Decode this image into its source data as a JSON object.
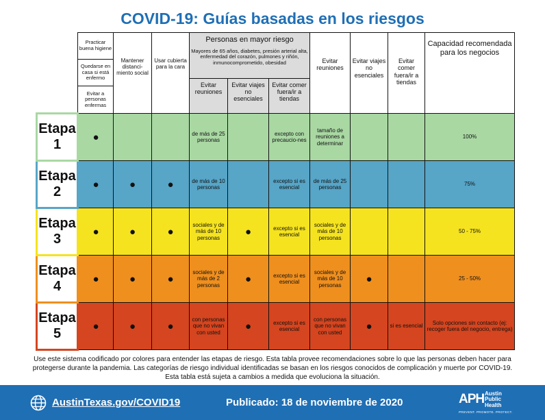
{
  "title": "COVID-19: Guías basadas en los riesgos",
  "header": {
    "col_hygiene": "Practicar buena higiene",
    "col_stay_home": "Quedarse en casa si está enfermo",
    "col_avoid_sick": "Evitar a personas enfermas",
    "col_distance": "Mantener distanci-miento social",
    "col_face": "Usar cubierta para la cara",
    "higher_risk_title": "Personas en mayor riesgo",
    "higher_risk_desc": "Mayores de 65 años, diabetes, presión arterial alta, enfermedad del corazón, pulmones y riñón, inmunocomprometido, obesidad",
    "hr_gatherings": "Evitar reuniones",
    "hr_travel": "Evitar viajes no esenciales",
    "hr_dining": "Evitar comer fuera/ir a tiendas",
    "gen_gatherings": "Evitar reuniones",
    "gen_travel": "Evitar viajes no esenciales",
    "gen_dining": "Evitar comer fuera/ir a tiendas",
    "capacity": "Capacidad recomendada para los negocios"
  },
  "dot": "●",
  "stages": [
    {
      "word": "Etapa",
      "num": "1",
      "hygiene": true,
      "distance": false,
      "face": false,
      "hr_gatherings": "de más de 25 personas",
      "hr_travel": false,
      "hr_dining": "excepto con precaucio-nes",
      "gen_gatherings": "tamaño de reuniones a determinar",
      "gen_travel": false,
      "gen_dining": "",
      "capacity": "100%"
    },
    {
      "word": "Etapa",
      "num": "2",
      "hygiene": true,
      "distance": true,
      "face": true,
      "hr_gatherings": "de más de 10 personas",
      "hr_travel": false,
      "hr_dining": "excepto si es esencial",
      "gen_gatherings": "de más de 25 personas",
      "gen_travel": false,
      "gen_dining": "",
      "capacity": "75%"
    },
    {
      "word": "Etapa",
      "num": "3",
      "hygiene": true,
      "distance": true,
      "face": true,
      "hr_gatherings": "sociales y de más de 10 personas",
      "hr_travel": true,
      "hr_dining": "excepto si es esencial",
      "gen_gatherings": "sociales y de más de 10 personas",
      "gen_travel": false,
      "gen_dining": "",
      "capacity": "50 - 75%"
    },
    {
      "word": "Etapa",
      "num": "4",
      "hygiene": true,
      "distance": true,
      "face": true,
      "hr_gatherings": "sociales y de más de 2 personas",
      "hr_travel": true,
      "hr_dining": "excepto si es esencial",
      "gen_gatherings": "sociales y de más de 10 personas",
      "gen_travel": true,
      "gen_dining": "",
      "capacity": "25 - 50%"
    },
    {
      "word": "Etapa",
      "num": "5",
      "hygiene": true,
      "distance": true,
      "face": true,
      "hr_gatherings": "con personas que no vivan con usted",
      "hr_travel": true,
      "hr_dining": "excepto si es esencial",
      "gen_gatherings": "con personas que no vivan con usted",
      "gen_travel": true,
      "gen_dining": "si es esencial",
      "capacity": "Solo opciones sin contacto (ej: recoger fuera del negocio, entrega)"
    }
  ],
  "colors": {
    "title_blue": "#1f6fb5",
    "stage1": "#a9d8a3",
    "stage2": "#57a5c7",
    "stage3": "#f5e31f",
    "stage4": "#ef8f1e",
    "stage5": "#d5451f"
  },
  "footnote": "Use este sistema codificado por colores para entender las etapas de riesgo. Esta tabla provee recomendaciones sobre lo que las personas deben hacer para protegerse durante la pandemia. Las categorías de riesgo individual identificadas se basan en los riesgos conocidos de complicación y muerte por COVID-19. Esta tabla está sujeta a cambios a medida que evoluciona la situación.",
  "footer": {
    "globe_icon": "globe-icon",
    "url": "AustinTexas.gov/COVID19",
    "published": "Publicado: 18 de noviembre de 2020",
    "logo_mark": "APH",
    "logo_name_1": "Austin",
    "logo_name_2": "Public",
    "logo_name_3": "Health",
    "logo_tagline": "PREVENT. PROMOTE. PROTECT."
  }
}
